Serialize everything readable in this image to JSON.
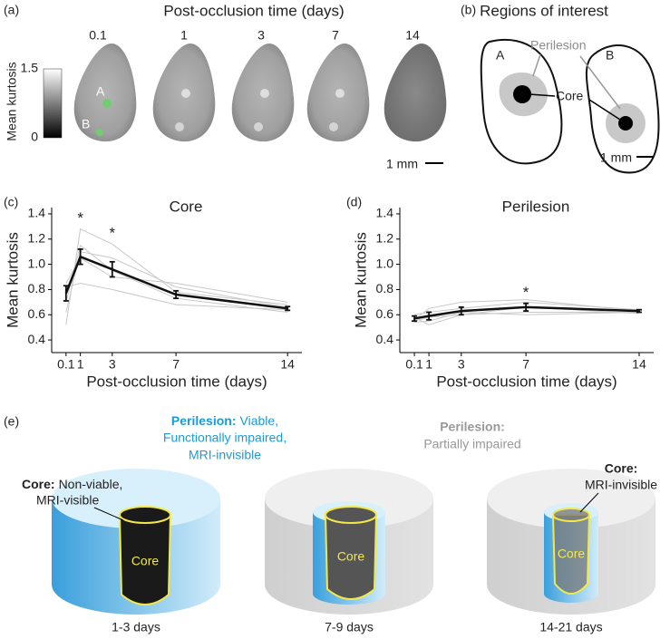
{
  "panel_labels": [
    "(a)",
    "(b)",
    "(c)",
    "(d)",
    "(e)"
  ],
  "panel_a": {
    "title": "Post-occlusion time (days)",
    "time_labels": [
      "0.1",
      "1",
      "3",
      "7",
      "14"
    ],
    "colorbar_label": "Mean kurtosis",
    "colorbar_ticks": [
      "1.5",
      "0"
    ],
    "roi_labels": [
      "A",
      "B"
    ],
    "scale_bar": "1 mm"
  },
  "panel_b": {
    "title": "Regions of interest",
    "region_labels": [
      "A",
      "B"
    ],
    "perilesion": "Perilesion",
    "core": "Core",
    "scale_bar": "1 mm"
  },
  "chart_data": [
    {
      "type": "line",
      "title": "Core",
      "x_label": "Post-occlusion time (days)",
      "y_label": "Mean kurtosis",
      "x": [
        0.1,
        1,
        3,
        7,
        14
      ],
      "xlim": [
        -0.8,
        14.9
      ],
      "xticks": [
        0.1,
        1,
        3,
        7,
        14
      ],
      "ylim": [
        0.3,
        1.45
      ],
      "yticks": [
        0.4,
        0.6,
        0.8,
        {
          "value": 1,
          "label": "1.0"
        },
        1.2,
        1.4
      ],
      "series": [
        {
          "color": "#c8c8c8",
          "values": [
            0.52,
            1.28,
            1.16,
            0.78,
            0.68
          ]
        },
        {
          "color": "#c8c8c8",
          "values": [
            0.62,
            1.1,
            1.05,
            0.82,
            0.66
          ]
        },
        {
          "color": "#c8c8c8",
          "values": [
            0.85,
            1.05,
            0.9,
            0.85,
            0.7
          ]
        },
        {
          "color": "#c8c8c8",
          "values": [
            0.82,
            0.85,
            0.8,
            0.68,
            0.64
          ]
        },
        {
          "color": "#c8c8c8",
          "values": [
            0.7,
            1.15,
            0.95,
            0.73,
            0.62
          ]
        },
        {
          "color": "#111111",
          "values": [
            0.77,
            1.06,
            0.96,
            0.76,
            0.65
          ],
          "errors": [
            0.06,
            0.06,
            0.06,
            0.03,
            0.015
          ]
        }
      ],
      "annotations": [
        {
          "text": "*",
          "x": 1,
          "y": 1.36
        },
        {
          "text": "*",
          "x": 3,
          "y": 1.24
        }
      ]
    },
    {
      "type": "line",
      "title": "Perilesion",
      "x_label": "Post-occlusion time (days)",
      "y_label": "Mean kurtosis",
      "x": [
        0.1,
        1,
        3,
        7,
        14
      ],
      "xlim": [
        -0.8,
        14.9
      ],
      "xticks": [
        0.1,
        1,
        3,
        7,
        14
      ],
      "ylim": [
        0.3,
        1.45
      ],
      "yticks": [
        0.4,
        0.6,
        0.8,
        {
          "value": 1,
          "label": "1.0"
        },
        1.2,
        1.4
      ],
      "series": [
        {
          "color": "#c8c8c8",
          "values": [
            0.56,
            0.65,
            0.7,
            0.72,
            0.63
          ]
        },
        {
          "color": "#c8c8c8",
          "values": [
            0.58,
            0.52,
            0.6,
            0.62,
            0.62
          ]
        },
        {
          "color": "#c8c8c8",
          "values": [
            0.6,
            0.62,
            0.65,
            0.7,
            0.64
          ]
        },
        {
          "color": "#c8c8c8",
          "values": [
            0.55,
            0.58,
            0.6,
            0.66,
            0.61
          ]
        },
        {
          "color": "#c8c8c8",
          "values": [
            0.54,
            0.55,
            0.62,
            0.6,
            0.62
          ]
        },
        {
          "color": "#111111",
          "values": [
            0.57,
            0.59,
            0.63,
            0.66,
            0.63
          ],
          "errors": [
            0.02,
            0.03,
            0.03,
            0.03,
            0.01
          ]
        }
      ],
      "annotations": [
        {
          "text": "*",
          "x": 7,
          "y": 0.77
        }
      ]
    }
  ],
  "panel_e": {
    "perilesion_early": {
      "heading": "Perilesion:",
      "lines": [
        "Viable,",
        "Functionally impaired,",
        "MRI-invisible"
      ]
    },
    "perilesion_mid": {
      "heading": "Perilesion:",
      "lines": [
        "Partially impaired"
      ]
    },
    "core_early": {
      "heading": "Core:",
      "lines": [
        "Non-viable,",
        "MRI-visible"
      ]
    },
    "core_late": {
      "heading": "Core:",
      "lines": [
        "MRI-invisible"
      ]
    },
    "cylinder_labels": [
      "Core",
      "Core",
      "Core"
    ],
    "captions": [
      "1-3 days",
      "7-9 days",
      "14-21 days"
    ]
  }
}
